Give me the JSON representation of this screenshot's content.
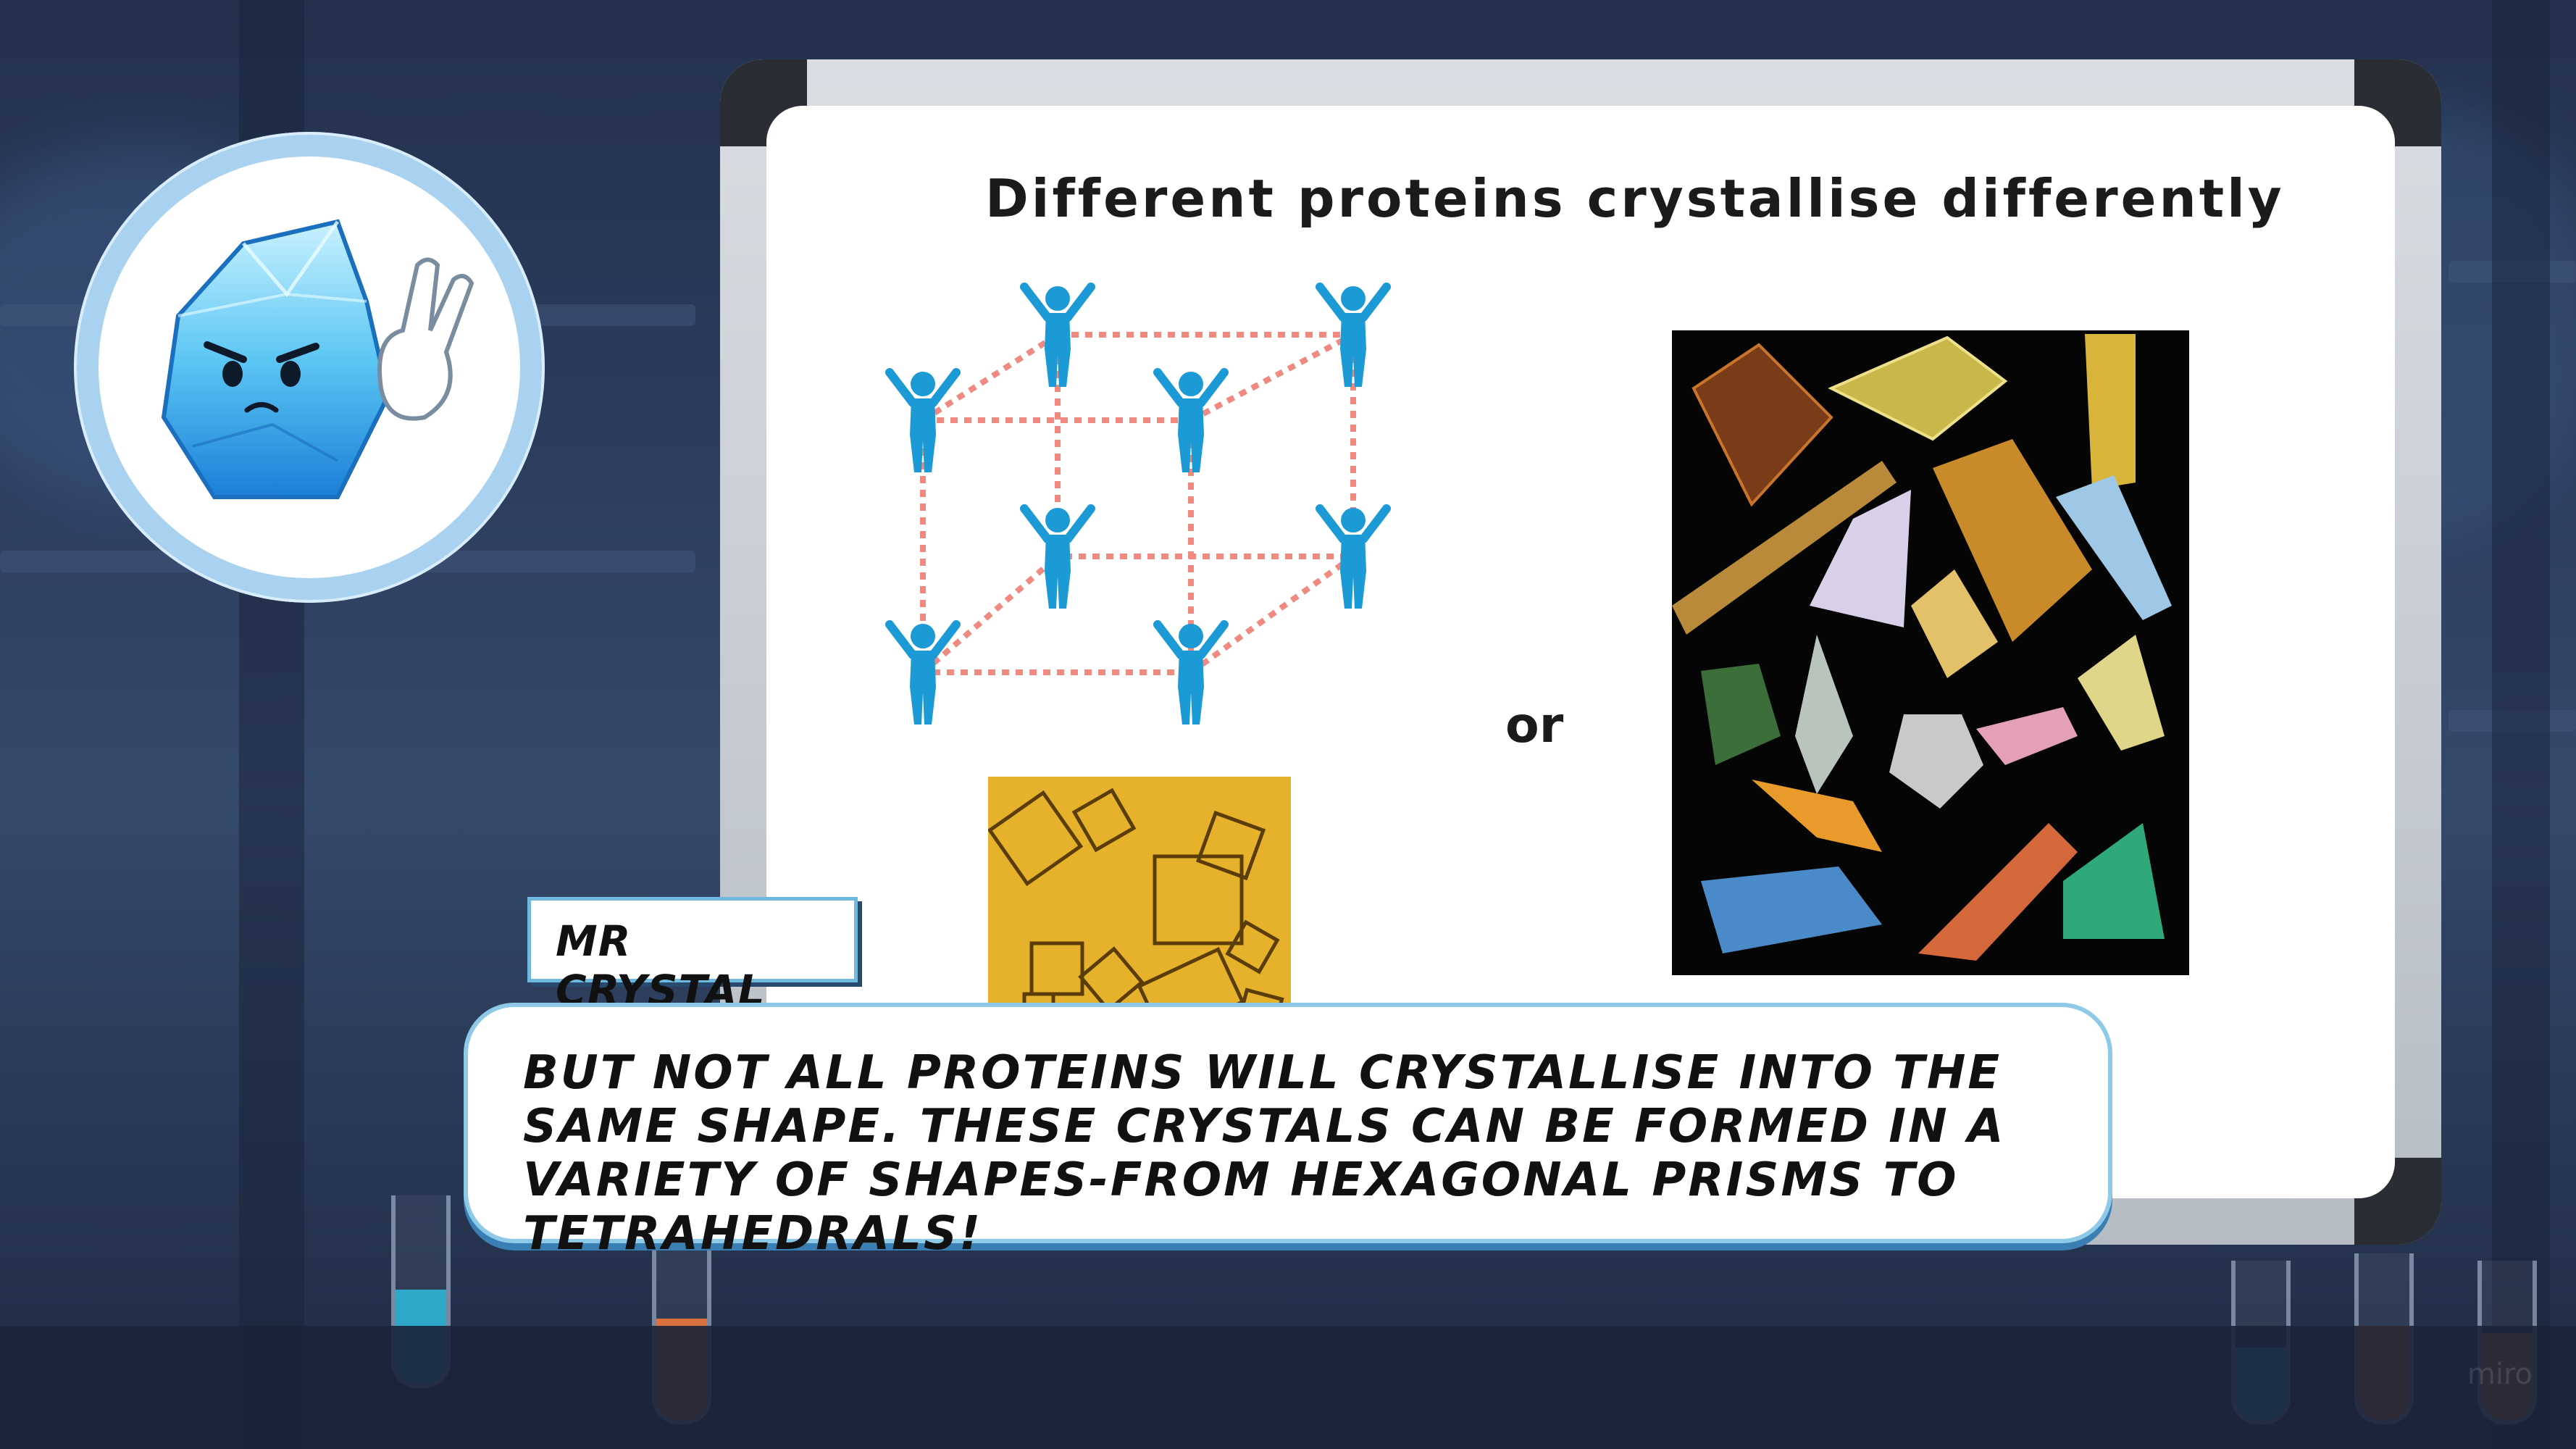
{
  "scene": {
    "board_title": "Different proteins crystallise differently",
    "or_label": "or",
    "watermark": "miro"
  },
  "dialogue": {
    "speaker": "MR CRYSTAL",
    "text": "But not all proteins will crystallise into the same shape. These crystals can be formed in a variety of shapes-from hexagonal prisms to tetrahedrals!"
  },
  "colors": {
    "figure": "#1b9ad6",
    "lattice_line": "#f08a80",
    "dialog_border": "#8ec9e8",
    "name_border": "#6fb8de"
  },
  "icons": [
    "crystal-mascot-icon",
    "person-figure-icon"
  ]
}
